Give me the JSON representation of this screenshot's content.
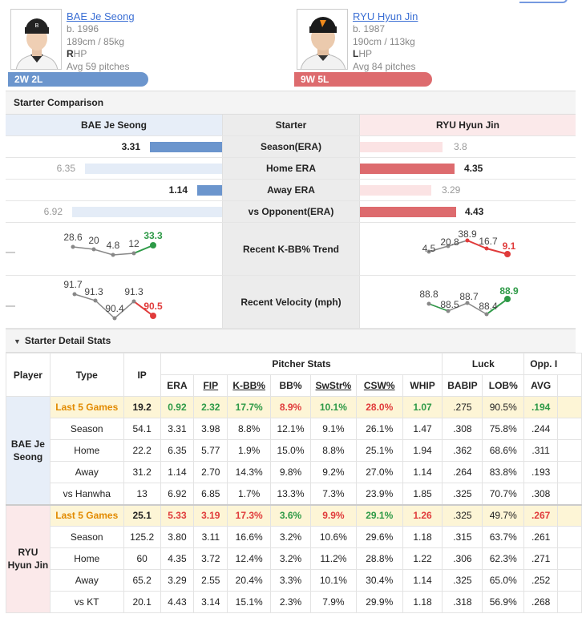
{
  "players": {
    "bae": {
      "name": "BAE Je Seong",
      "born": "b. 1996",
      "size": "189cm / 85kg",
      "hand_letter": "R",
      "hand_rest": "HP",
      "avg": "Avg 59 pitches",
      "record": "2W 2L"
    },
    "ryu": {
      "name": "RYU Hyun Jin",
      "born": "b. 1987",
      "size": "190cm / 113kg",
      "hand_letter": "L",
      "hand_rest": "HP",
      "avg": "Avg 84 pitches",
      "record": "9W 5L"
    }
  },
  "comparison": {
    "title": "Starter Comparison",
    "left_header": "BAE Je Seong",
    "mid_header": "Starter",
    "right_header": "RYU Hyun Jin",
    "rows": [
      {
        "label": "Season(ERA)",
        "left": "3.31",
        "right": "3.8",
        "left_strong": true
      },
      {
        "label": "Home ERA",
        "left": "6.35",
        "right": "4.35",
        "left_strong": false
      },
      {
        "label": "Away ERA",
        "left": "1.14",
        "right": "3.29",
        "left_strong": true
      },
      {
        "label": "vs Opponent(ERA)",
        "left": "6.92",
        "right": "4.43",
        "left_strong": false
      }
    ],
    "kbb": {
      "label": "Recent K-BB% Trend",
      "left": [
        "28.6",
        "20",
        "4.8",
        "12",
        "33.3"
      ],
      "right": [
        "4.5",
        "20.8",
        "38.9",
        "16.7",
        "9.1"
      ]
    },
    "velo": {
      "label": "Recent Velocity (mph)",
      "left": [
        "91.7",
        "91.3",
        "90.4",
        "91.3",
        "90.5"
      ],
      "right": [
        "88.8",
        "88.5",
        "88.7",
        "88.4",
        "88.9"
      ]
    }
  },
  "detail": {
    "title": "Starter Detail Stats",
    "headers": {
      "player": "Player",
      "type": "Type",
      "ip": "IP",
      "pitcher_stats": "Pitcher Stats",
      "luck": "Luck",
      "opp": "Opp. I",
      "cols": [
        "ERA",
        "FIP",
        "K-BB%",
        "BB%",
        "SwStr%",
        "CSW%",
        "WHIP",
        "BABIP",
        "LOB%",
        "AVG"
      ]
    },
    "bae_label": "BAE Je Seong",
    "ryu_label": "RYU Hyun Jin",
    "bae_rows": [
      [
        "Last 5 Games",
        "19.2",
        "0.92",
        "2.32",
        "17.7%",
        "8.9%",
        "10.1%",
        "28.0%",
        "1.07",
        ".275",
        "90.5%",
        ".194"
      ],
      [
        "Season",
        "54.1",
        "3.31",
        "3.98",
        "8.8%",
        "12.1%",
        "9.1%",
        "26.1%",
        "1.47",
        ".308",
        "75.8%",
        ".244"
      ],
      [
        "Home",
        "22.2",
        "6.35",
        "5.77",
        "1.9%",
        "15.0%",
        "8.8%",
        "25.1%",
        "1.94",
        ".362",
        "68.6%",
        ".311"
      ],
      [
        "Away",
        "31.2",
        "1.14",
        "2.70",
        "14.3%",
        "9.8%",
        "9.2%",
        "27.0%",
        "1.14",
        ".264",
        "83.8%",
        ".193"
      ],
      [
        "vs Hanwha",
        "13",
        "6.92",
        "6.85",
        "1.7%",
        "13.3%",
        "7.3%",
        "23.9%",
        "1.85",
        ".325",
        "70.7%",
        ".308"
      ]
    ],
    "ryu_rows": [
      [
        "Last 5 Games",
        "25.1",
        "5.33",
        "3.19",
        "17.3%",
        "3.6%",
        "9.9%",
        "29.1%",
        "1.26",
        ".325",
        "49.7%",
        ".267"
      ],
      [
        "Season",
        "125.2",
        "3.80",
        "3.11",
        "16.6%",
        "3.2%",
        "10.6%",
        "29.6%",
        "1.18",
        ".315",
        "63.7%",
        ".261"
      ],
      [
        "Home",
        "60",
        "4.35",
        "3.72",
        "12.4%",
        "3.2%",
        "11.2%",
        "28.8%",
        "1.22",
        ".306",
        "62.3%",
        ".271"
      ],
      [
        "Away",
        "65.2",
        "3.29",
        "2.55",
        "20.4%",
        "3.3%",
        "10.1%",
        "30.4%",
        "1.14",
        ".325",
        "65.0%",
        ".252"
      ],
      [
        "vs KT",
        "20.1",
        "4.43",
        "3.14",
        "15.1%",
        "2.3%",
        "7.9%",
        "29.9%",
        "1.18",
        ".318",
        "56.9%",
        ".268"
      ]
    ]
  },
  "colors": {
    "bae": "#6b95cd",
    "ryu": "#dd6b6e",
    "good": "#2e9a47",
    "bad": "#e03b3b",
    "line": "#888888"
  }
}
